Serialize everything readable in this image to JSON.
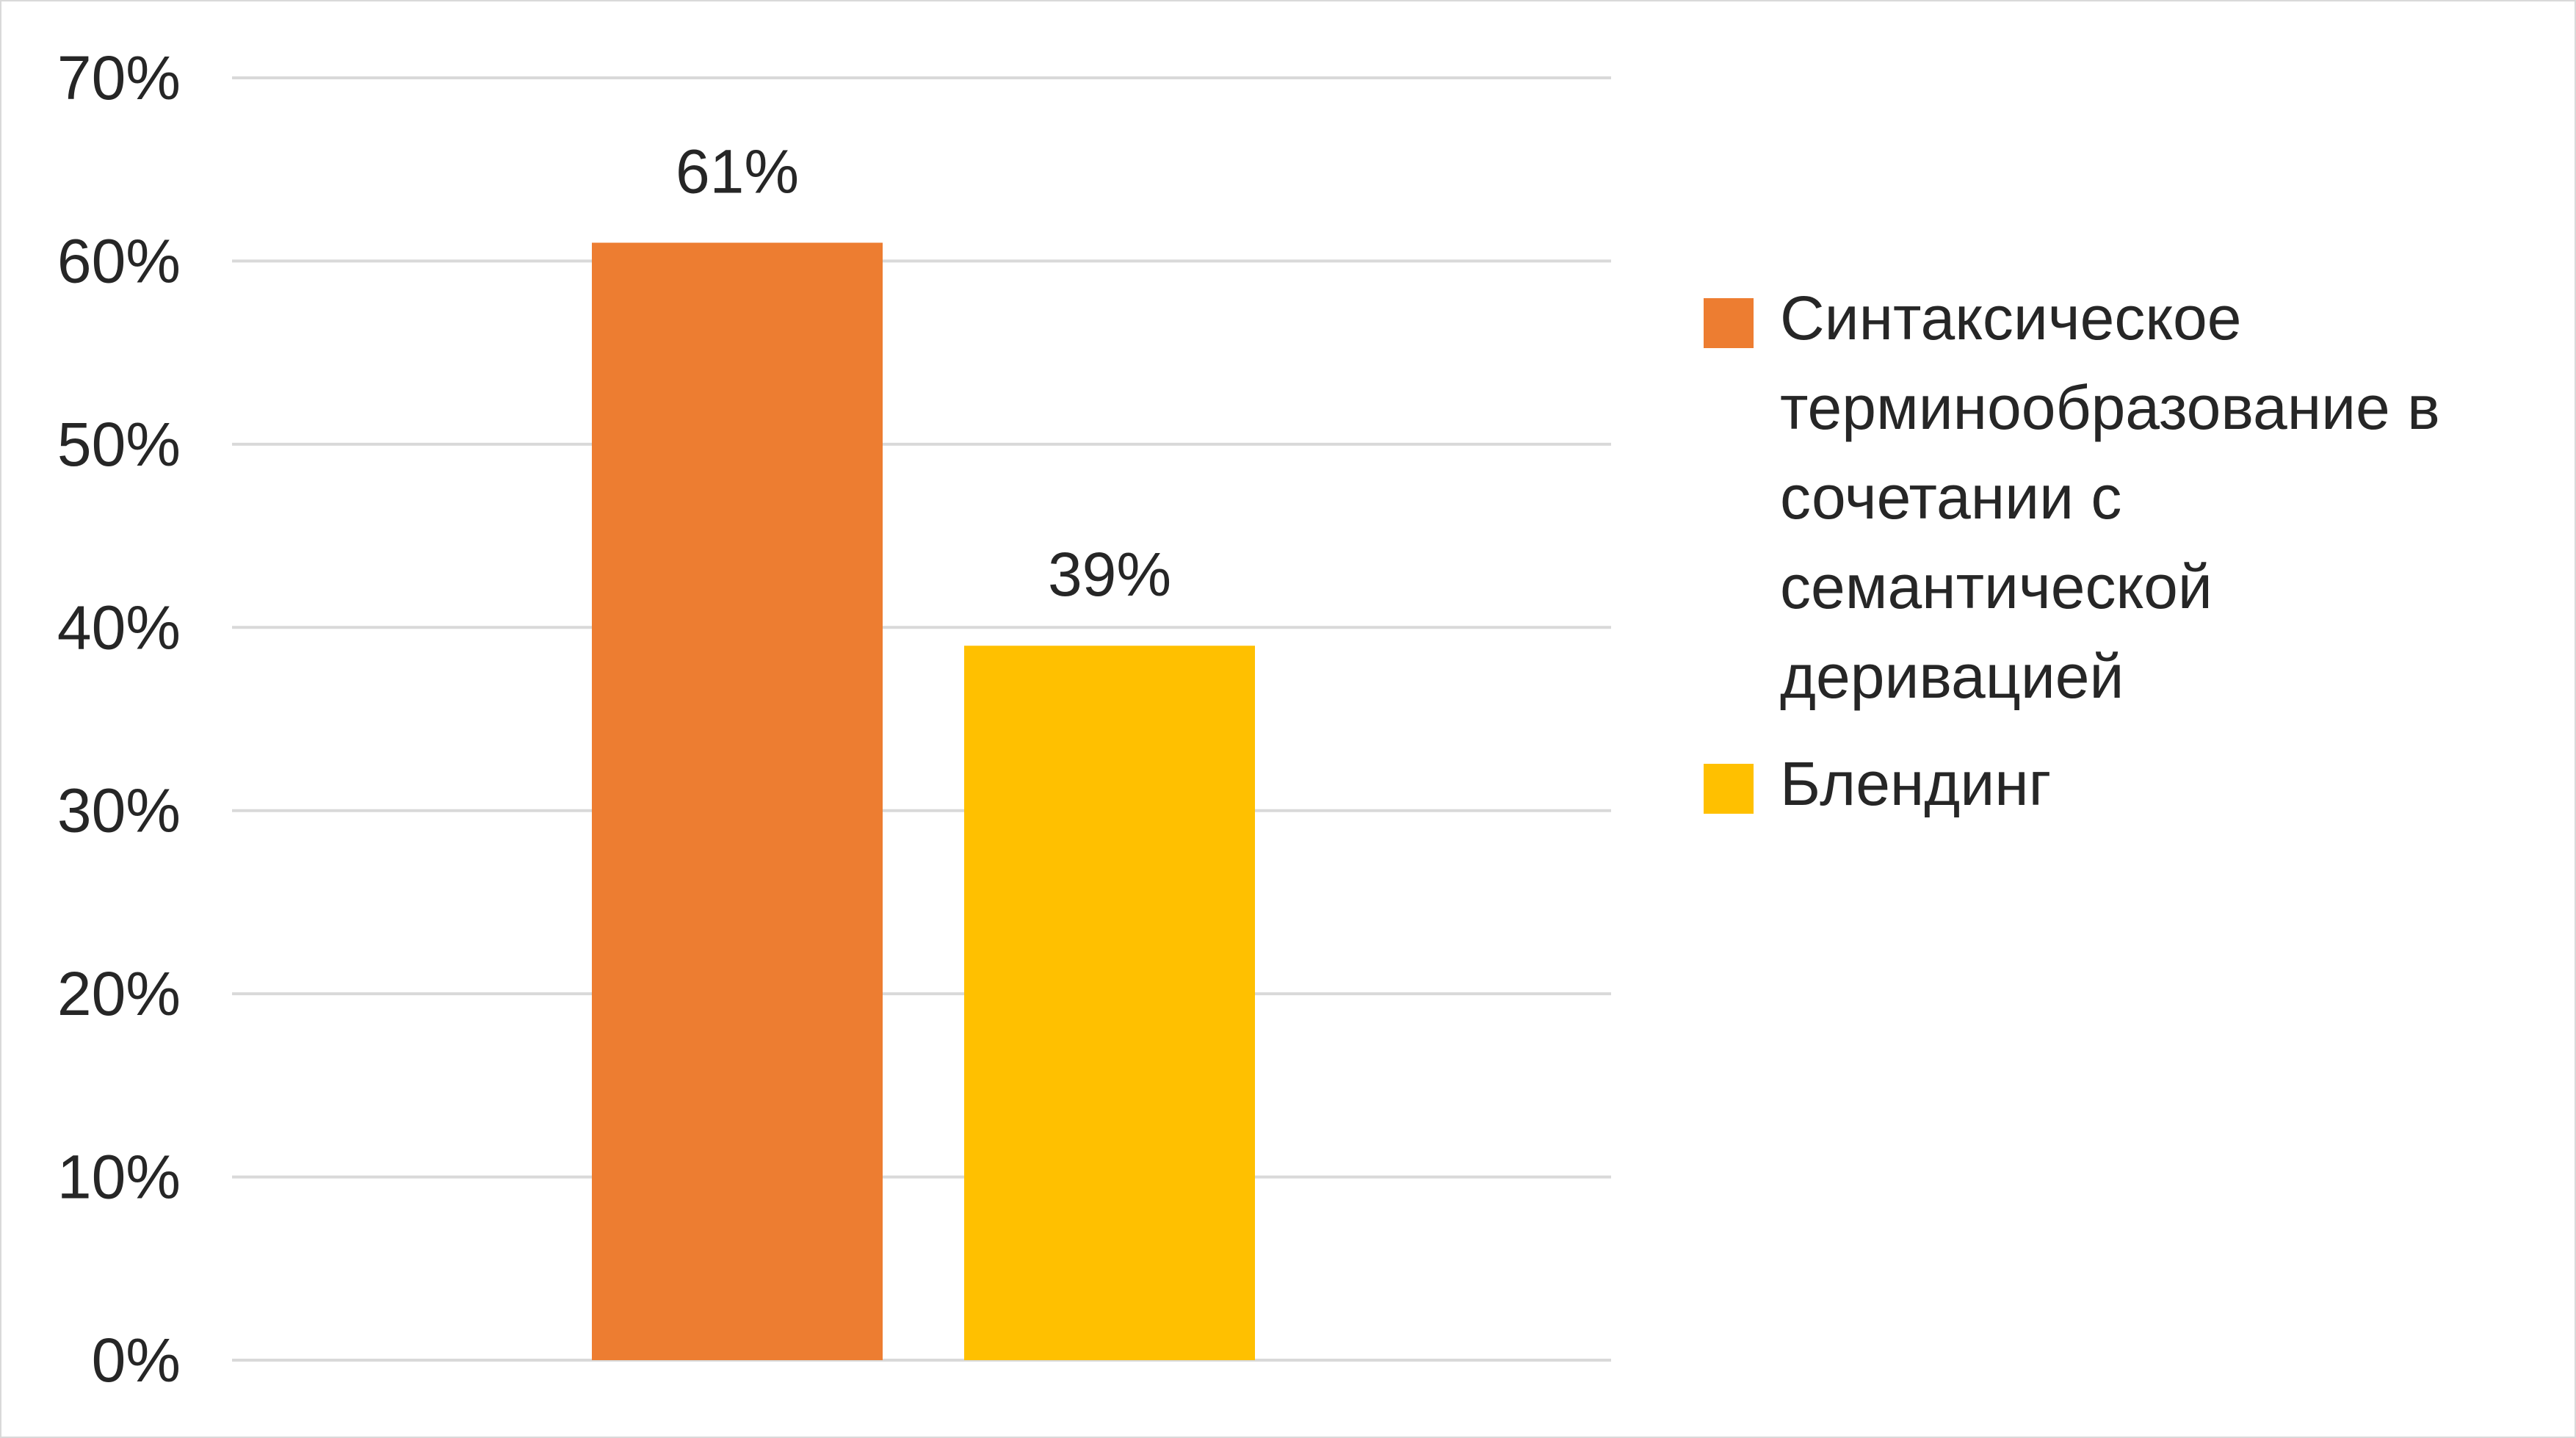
{
  "chart_data": {
    "type": "bar",
    "series": [
      {
        "name": "Синтаксическое терминообразование в сочетании с семантической деривацией",
        "value": 61,
        "label": "61%",
        "color": "#ED7D31"
      },
      {
        "name": "Блендинг",
        "value": 39,
        "label": "39%",
        "color": "#FFC000"
      }
    ],
    "ylim": [
      0,
      70
    ],
    "y_ticks": [
      "0%",
      "10%",
      "20%",
      "30%",
      "40%",
      "50%",
      "60%",
      "70%"
    ],
    "y_tick_values": [
      0,
      10,
      20,
      30,
      40,
      50,
      60,
      70
    ],
    "grid": true,
    "gridline_color": "#d9d9d9",
    "legend_position": "right",
    "title": "",
    "xlabel": "",
    "ylabel": ""
  }
}
